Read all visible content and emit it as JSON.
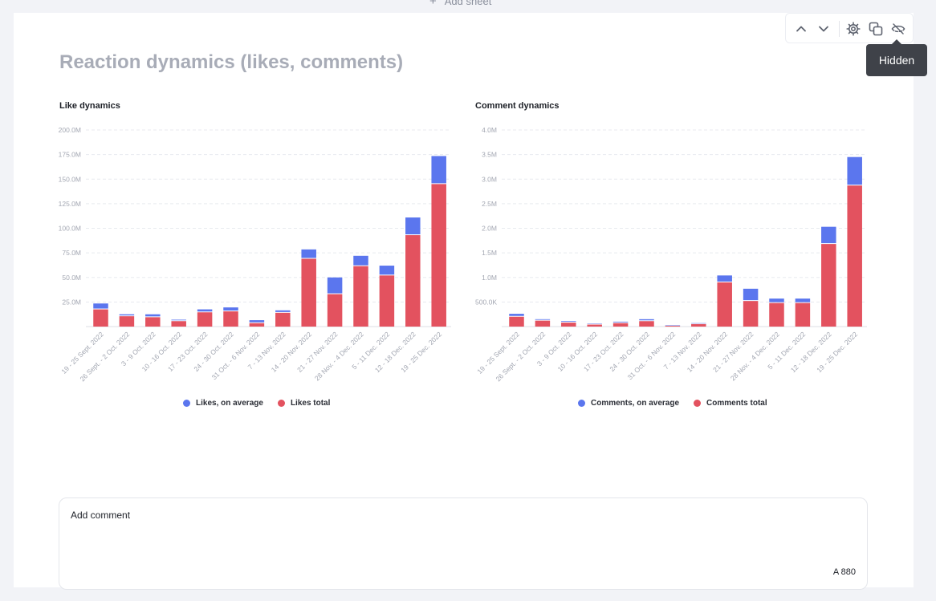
{
  "top": {
    "add_sheet_label": "Add sheet"
  },
  "toolbar": {
    "tooltip": "Hidden",
    "icons": [
      "chevron-up-icon",
      "chevron-down-icon",
      "gear-icon",
      "duplicate-icon",
      "eye-off-icon"
    ]
  },
  "report": {
    "title": "Reaction dynamics (likes, comments)"
  },
  "colors": {
    "average": "#5b76ee",
    "total": "#e3525f",
    "grid": "#e8eaef",
    "tick": "#a3a7b2"
  },
  "chart_data": [
    {
      "type": "bar",
      "stacked": true,
      "title": "Like dynamics",
      "categories": [
        "19 - 25 Sept. 2022",
        "26 Sept. - 2 Oct. 2022",
        "3 - 9 Oct. 2022",
        "10 - 16 Oct. 2022",
        "17 - 23 Oct. 2022",
        "24 - 30 Oct. 2022",
        "31 Oct. - 6 Nov. 2022",
        "7 - 13 Nov. 2022",
        "14 - 20 Nov. 2022",
        "21 - 27 Nov. 2022",
        "28 Nov. - 4 Dec. 2022",
        "5 - 11 Dec. 2022",
        "12 - 18 Dec. 2022",
        "19 - 25 Dec. 2022"
      ],
      "series": [
        {
          "name": "Likes total",
          "values": [
            17.5,
            10.5,
            9.5,
            5.5,
            14.5,
            15.5,
            3.5,
            14,
            69,
            33,
            61.5,
            52,
            93,
            145
          ]
        },
        {
          "name": "Likes, on average",
          "values": [
            6,
            2,
            3,
            1.5,
            3,
            4,
            3,
            2.5,
            9.5,
            17,
            10.5,
            10,
            18,
            28.5
          ]
        }
      ],
      "y_ticks": [
        "25.0M",
        "50.0M",
        "75.0M",
        "100.0M",
        "125.0M",
        "150.0M",
        "175.0M",
        "200.0M"
      ],
      "ylim": [
        0,
        200
      ],
      "unit": "M",
      "legend": [
        "Likes, on average",
        "Likes total"
      ],
      "legend_position": "bottom",
      "grid": true
    },
    {
      "type": "bar",
      "stacked": true,
      "title": "Comment dynamics",
      "categories": [
        "19 - 25 Sept. 2022",
        "26 Sept. - 2 Oct. 2022",
        "3 - 9 Oct. 2022",
        "10 - 16 Oct. 2022",
        "17 - 23 Oct. 2022",
        "24 - 30 Oct. 2022",
        "31 Oct. - 6 Nov. 2022",
        "7 - 13 Nov. 2022",
        "14 - 20 Nov. 2022",
        "21 - 27 Nov. 2022",
        "28 Nov. - 4 Dec. 2022",
        "5 - 11 Dec. 2022",
        "12 - 18 Dec. 2022",
        "19 - 25 Dec. 2022"
      ],
      "series": [
        {
          "name": "Comments total",
          "values": [
            0.2,
            0.12,
            0.08,
            0.04,
            0.07,
            0.11,
            0.015,
            0.05,
            0.9,
            0.52,
            0.48,
            0.48,
            1.68,
            2.87
          ]
        },
        {
          "name": "Comments, on average",
          "values": [
            0.06,
            0.03,
            0.03,
            0.02,
            0.03,
            0.04,
            0.01,
            0.02,
            0.14,
            0.25,
            0.09,
            0.09,
            0.35,
            0.58
          ]
        }
      ],
      "y_ticks": [
        "500.0K",
        "1.0M",
        "1.5M",
        "2.0M",
        "2.5M",
        "3.0M",
        "3.5M",
        "4.0M"
      ],
      "ylim": [
        0,
        4
      ],
      "unit": "M",
      "legend": [
        "Comments, on average",
        "Comments total"
      ],
      "legend_position": "bottom",
      "grid": true
    }
  ],
  "comment": {
    "label": "Add comment",
    "counter": "A 880"
  }
}
